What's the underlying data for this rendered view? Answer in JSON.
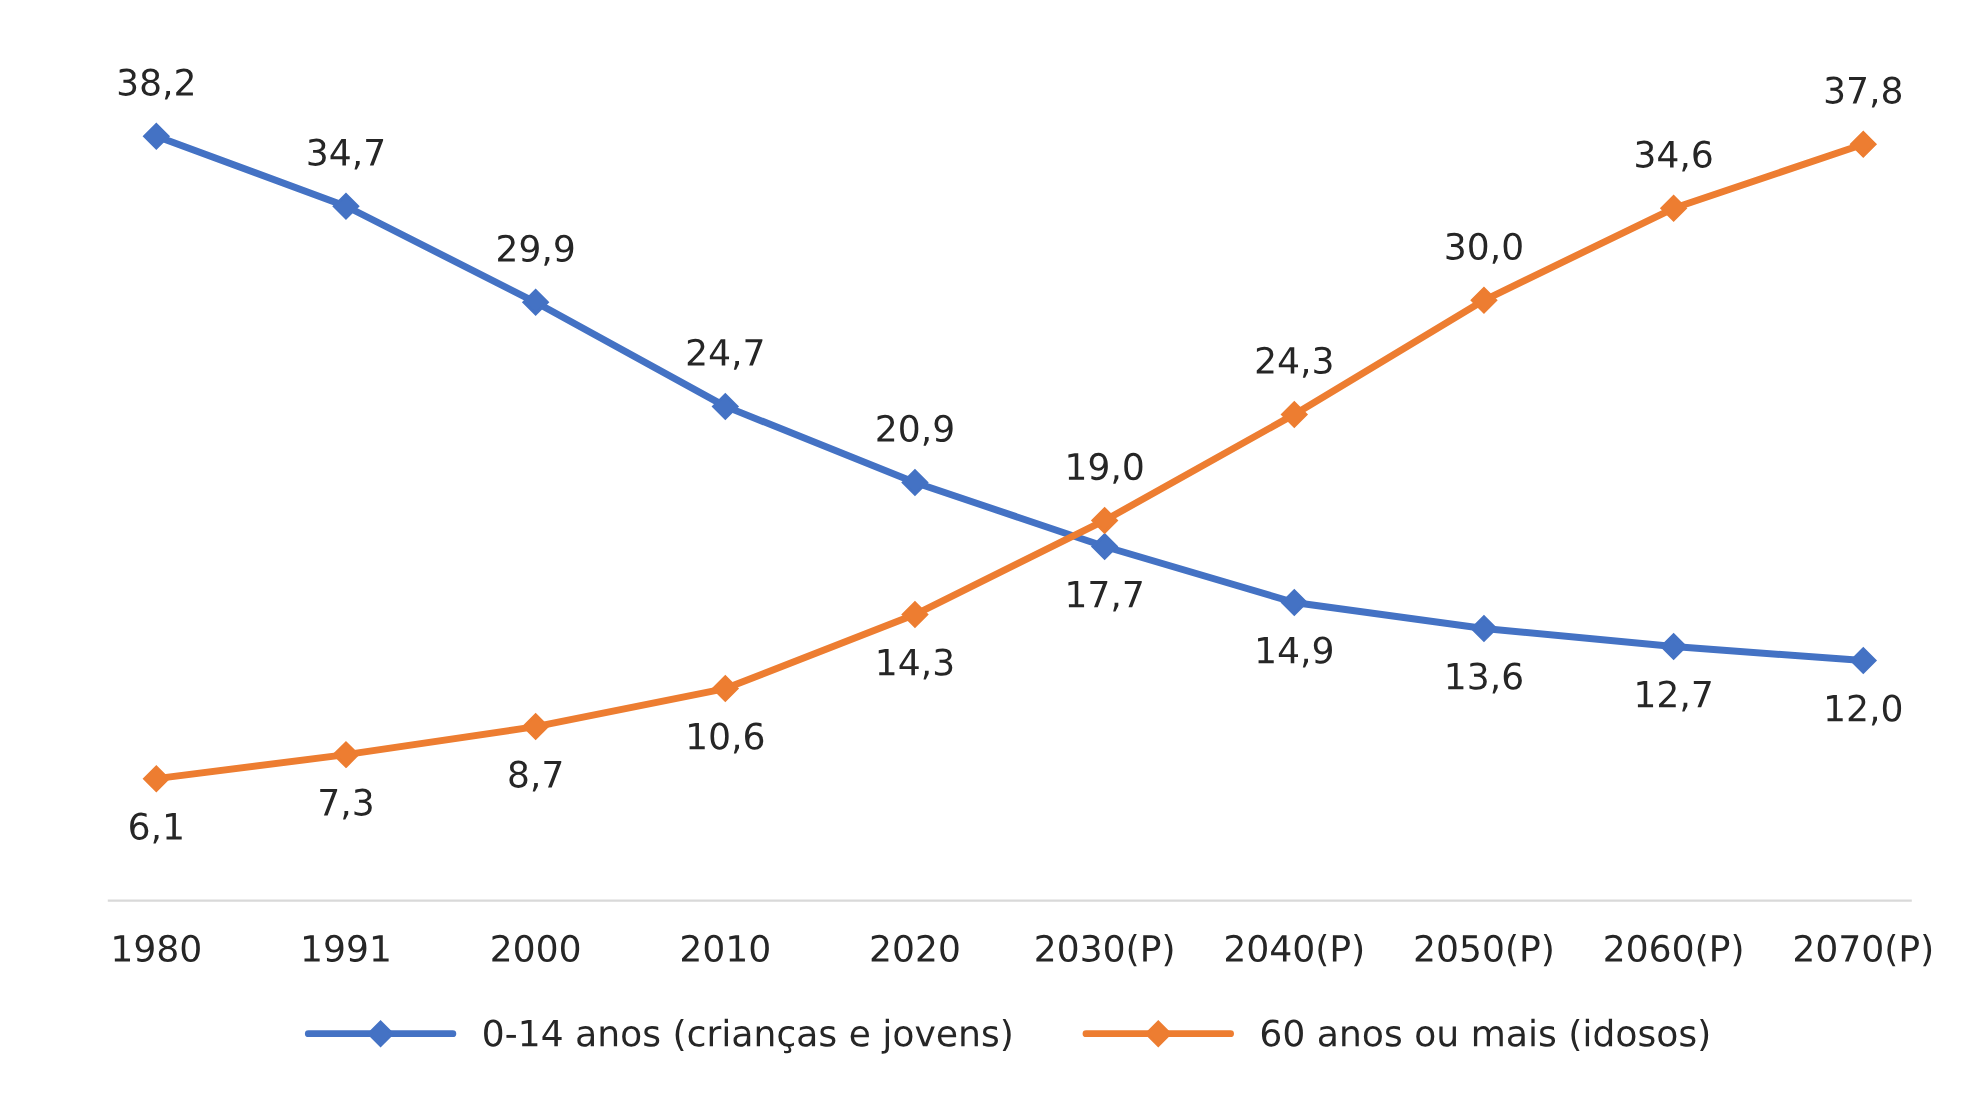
{
  "chart_data": {
    "type": "line",
    "categories": [
      "1980",
      "1991",
      "2000",
      "2010",
      "2020",
      "2030(P)",
      "2040(P)",
      "2050(P)",
      "2060(P)",
      "2070(P)"
    ],
    "series": [
      {
        "name": "0-14 anos (crianças e jovens)",
        "color": "#4472c4",
        "values": [
          38.2,
          34.7,
          29.9,
          24.7,
          20.9,
          17.7,
          14.9,
          13.6,
          12.7,
          12.0
        ],
        "value_labels": [
          "38,2",
          "34,7",
          "29,9",
          "24,7",
          "20,9",
          "17,7",
          "14,9",
          "13,6",
          "12,7",
          "12,0"
        ]
      },
      {
        "name": "60 anos ou mais (idosos)",
        "color": "#ed7d31",
        "values": [
          6.1,
          7.3,
          8.7,
          10.6,
          14.3,
          19.0,
          24.3,
          30.0,
          34.6,
          37.8
        ],
        "value_labels": [
          "6,1",
          "7,3",
          "8,7",
          "10,6",
          "14,3",
          "19,0",
          "24,3",
          "30,0",
          "34,6",
          "37,8"
        ]
      }
    ],
    "marker": "diamond",
    "line_style": "solid",
    "grid": false,
    "legend": "bottom",
    "tick_labels": "x"
  }
}
